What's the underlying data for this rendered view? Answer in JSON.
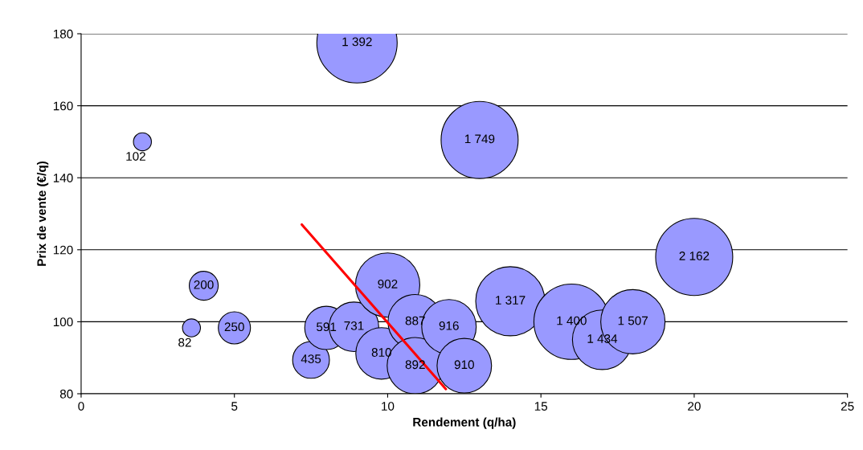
{
  "chart_data": {
    "type": "bubble",
    "xlabel": "Rendement (q/ha)",
    "ylabel": "Prix de vente (€/q)",
    "xlim": [
      0,
      25
    ],
    "xticks": [
      0,
      5,
      10,
      15,
      20,
      25
    ],
    "ylim": [
      80,
      180
    ],
    "yticks": [
      80,
      100,
      120,
      140,
      160,
      180
    ],
    "grid": "y",
    "legend": false,
    "series": [
      {
        "color": "#9999ff",
        "x": [
          9.0,
          13.0,
          2.0,
          4.0,
          3.6,
          5.0,
          7.5,
          8.0,
          8.9,
          10.0,
          9.8,
          10.9,
          10.9,
          12.0,
          12.5,
          14.0,
          16.0,
          17.0,
          18.0,
          20.0
        ],
        "values": [
          177.5,
          150.5,
          150,
          110,
          98.3,
          98.3,
          89.4,
          98.3,
          98.6,
          110.2,
          91.2,
          100,
          87.8,
          98.6,
          87.8,
          105.7,
          100,
          95,
          100,
          118
        ],
        "sizes": [
          1.0,
          0.92,
          0.05,
          0.13,
          0.05,
          0.16,
          0.21,
          0.29,
          0.38,
          0.64,
          0.41,
          0.46,
          0.49,
          0.46,
          0.46,
          0.74,
          0.88,
          0.55,
          0.64,
          0.92
        ]
      },
      {
        "type": "line",
        "color": "#ff0000",
        "x": [
          7.2,
          11.9
        ],
        "values": [
          127,
          81.3
        ]
      }
    ],
    "annotations": [
      {
        "text": "1 392",
        "x": 9.0,
        "y": 177.5
      },
      {
        "text": "1 749",
        "x": 13.0,
        "y": 150.5
      },
      {
        "text": "102",
        "x": 2.0,
        "y": 150
      },
      {
        "text": "200",
        "x": 4.0,
        "y": 110
      },
      {
        "text": "82",
        "x": 3.6,
        "y": 98.3
      },
      {
        "text": "250",
        "x": 5.0,
        "y": 98.3
      },
      {
        "text": "435",
        "x": 7.5,
        "y": 89.4
      },
      {
        "text": "591",
        "x": 8.0,
        "y": 98.3
      },
      {
        "text": "731",
        "x": 8.9,
        "y": 98.6
      },
      {
        "text": "902",
        "x": 10.0,
        "y": 110.2
      },
      {
        "text": "810",
        "x": 9.8,
        "y": 91.2
      },
      {
        "text": "887",
        "x": 10.9,
        "y": 100
      },
      {
        "text": "892",
        "x": 10.9,
        "y": 87.8
      },
      {
        "text": "916",
        "x": 12.0,
        "y": 98.6
      },
      {
        "text": "910",
        "x": 12.5,
        "y": 87.8
      },
      {
        "text": "1 317",
        "x": 14.0,
        "y": 105.7
      },
      {
        "text": "1 400",
        "x": 16.0,
        "y": 100
      },
      {
        "text": "1 434",
        "x": 17.0,
        "y": 95
      },
      {
        "text": "1 507",
        "x": 18.0,
        "y": 100
      },
      {
        "text": "2 162",
        "x": 20.0,
        "y": 118
      }
    ]
  }
}
